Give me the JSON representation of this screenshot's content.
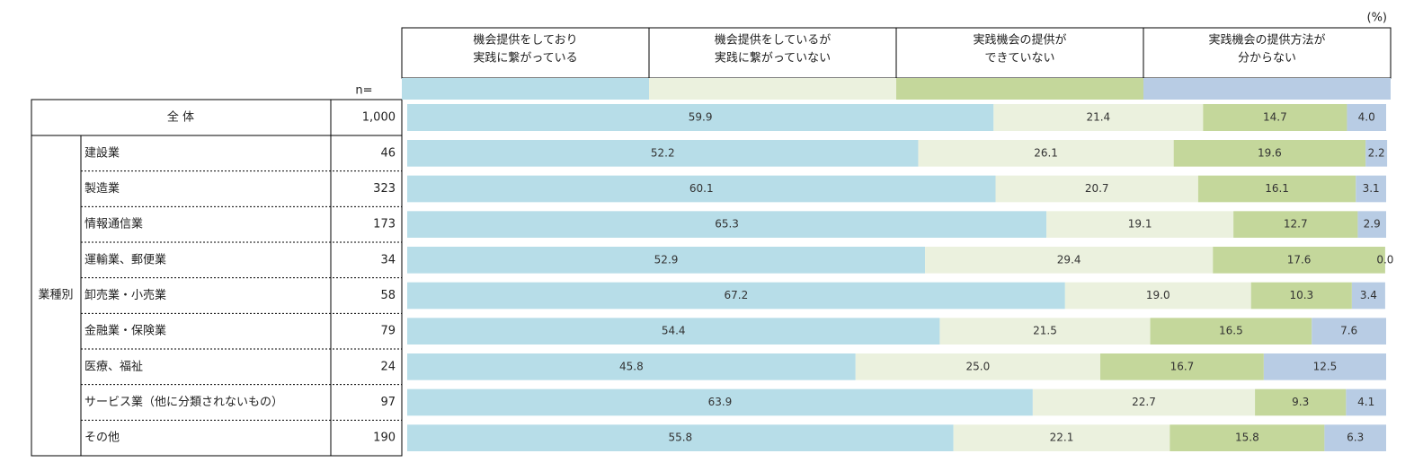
{
  "unit": "(%)",
  "n_label": "n=",
  "group_label": "業種別",
  "chart_data": {
    "type": "stacked-bar",
    "categories": [
      "全 体",
      "建設業",
      "製造業",
      "情報通信業",
      "運輸業、郵便業",
      "卸売業・小売業",
      "金融業・保険業",
      "医療、福祉",
      "サービス業（他に分類されないもの）",
      "その他"
    ],
    "n": [
      "1,000",
      "46",
      "323",
      "173",
      "34",
      "58",
      "79",
      "24",
      "97",
      "190"
    ],
    "xlim": [
      0,
      100
    ],
    "series": [
      {
        "name": [
          "機会提供をしており",
          "実践に繋がっている"
        ],
        "color": "#b7dde8",
        "values": [
          59.9,
          52.2,
          60.1,
          65.3,
          52.9,
          67.2,
          54.4,
          45.8,
          63.9,
          55.8
        ],
        "value_labels": [
          "59.9",
          "52.2",
          "60.1",
          "65.3",
          "52.9",
          "67.2",
          "54.4",
          "45.8",
          "63.9",
          "55.8"
        ]
      },
      {
        "name": [
          "機会提供をしているが",
          "実践に繋がっていない"
        ],
        "color": "#ebf1de",
        "values": [
          21.4,
          26.1,
          20.7,
          19.1,
          29.4,
          19,
          21.5,
          25,
          22.7,
          22.1
        ],
        "value_labels": [
          "21.4",
          "26.1",
          "20.7",
          "19.1",
          "29.4",
          "19.0",
          "21.5",
          "25.0",
          "22.7",
          "22.1"
        ]
      },
      {
        "name": [
          "実践機会の提供が",
          "できていない"
        ],
        "color": "#c4d79b",
        "values": [
          14.7,
          19.6,
          16.1,
          12.7,
          17.6,
          10.3,
          16.5,
          16.7,
          9.3,
          15.8
        ],
        "value_labels": [
          "14.7",
          "19.6",
          "16.1",
          "12.7",
          "17.6",
          "10.3",
          "16.5",
          "16.7",
          "9.3",
          "15.8"
        ]
      },
      {
        "name": [
          "実践機会の提供方法が",
          "分からない"
        ],
        "color": "#b8cce4",
        "values": [
          4,
          2.2,
          3.1,
          2.9,
          0,
          3.4,
          7.6,
          12.5,
          4.1,
          6.3
        ],
        "value_labels": [
          "4.0",
          "2.2",
          "3.1",
          "2.9",
          "0.0",
          "3.4",
          "7.6",
          "12.5",
          "4.1",
          "6.3"
        ]
      }
    ]
  }
}
